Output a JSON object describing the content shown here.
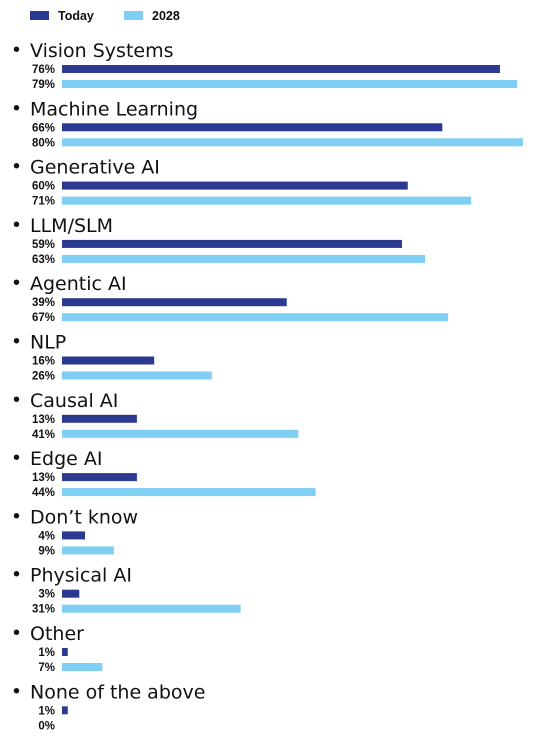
{
  "chart_data": {
    "type": "bar",
    "orientation": "horizontal",
    "legend_position": "top-left",
    "series": [
      {
        "name": "Today",
        "color": "#2b3990",
        "values": [
          76,
          66,
          60,
          59,
          39,
          16,
          13,
          13,
          4,
          3,
          1,
          1
        ],
        "labels": [
          "76%",
          "66%",
          "60%",
          "59%",
          "39%",
          "16%",
          "13%",
          "13%",
          "4%",
          "3%",
          "1%",
          "1%"
        ]
      },
      {
        "name": "2028",
        "color": "#7fcef3",
        "values": [
          79,
          80,
          71,
          63,
          67,
          26,
          41,
          44,
          9,
          31,
          7,
          0
        ],
        "labels": [
          "79%",
          "80%",
          "71%",
          "63%",
          "67%",
          "26%",
          "41%",
          "44%",
          "9%",
          "31%",
          "7%",
          "0%"
        ]
      }
    ],
    "categories": [
      "Vision Systems",
      "Machine Learning",
      "Generative AI",
      "LLM/SLM",
      "Agentic AI",
      "NLP",
      "Causal AI",
      "Edge AI",
      "Don’t know",
      "Physical AI",
      "Other",
      "None of the above"
    ],
    "bullet": "•",
    "xlim": [
      0,
      80
    ],
    "grid": false
  }
}
